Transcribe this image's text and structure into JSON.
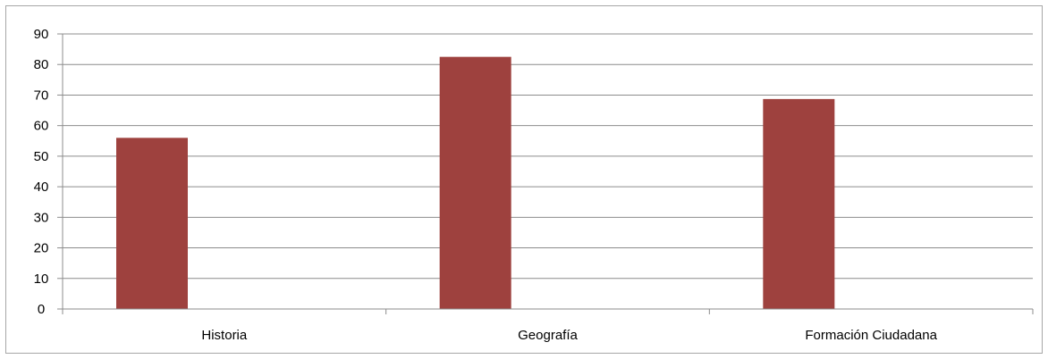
{
  "chart_data": {
    "type": "bar",
    "title": "",
    "xlabel": "",
    "ylabel": "",
    "categories": [
      "Historia",
      "Geografía",
      "Formación Ciudadana"
    ],
    "series": [
      {
        "values": [
          56,
          82.5,
          68.7
        ],
        "color": "#9e413e"
      }
    ],
    "ylim": [
      0,
      90
    ],
    "yticks": [
      0,
      10,
      20,
      30,
      40,
      50,
      60,
      70,
      80,
      90
    ],
    "grid": true,
    "legend": "none"
  }
}
